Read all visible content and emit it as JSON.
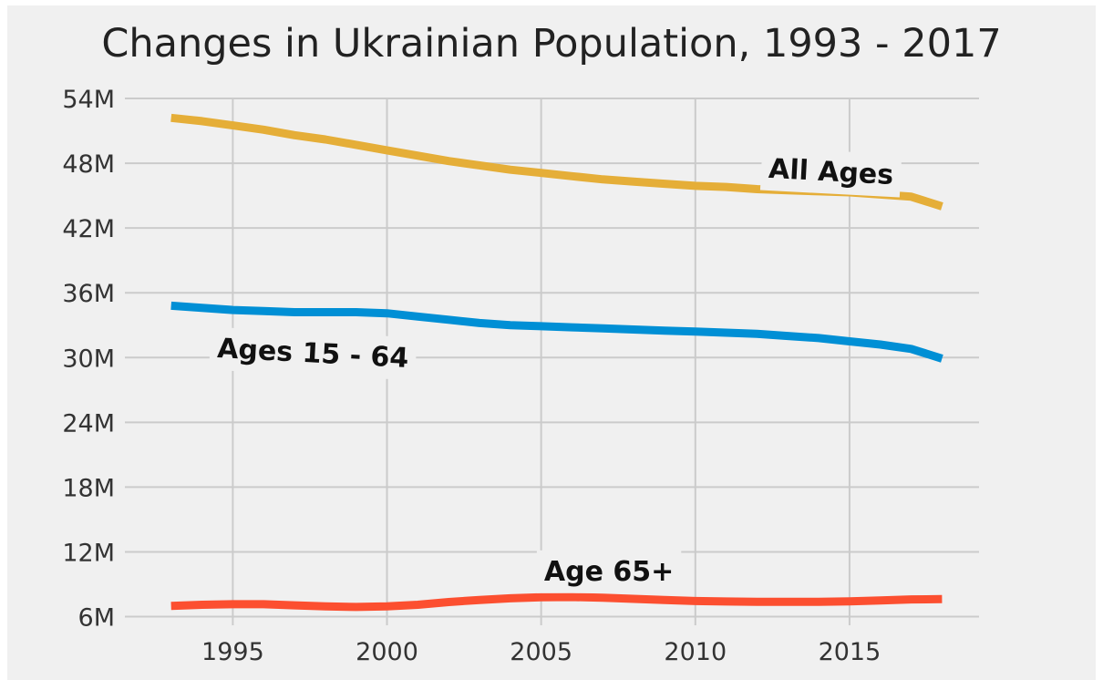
{
  "chart_data": {
    "type": "line",
    "title": "Changes in Ukrainian Population, 1993 - 2017",
    "xlabel": "",
    "ylabel": "",
    "xlim": [
      1991.5,
      2019.2
    ],
    "ylim": [
      5.2,
      54.0
    ],
    "x_ticks": [
      1995,
      2000,
      2005,
      2010,
      2015
    ],
    "x_tick_labels": [
      "1995",
      "2000",
      "2005",
      "2010",
      "2015"
    ],
    "y_ticks": [
      6,
      12,
      18,
      24,
      30,
      36,
      42,
      48,
      54
    ],
    "y_tick_labels": [
      "6M",
      "12M",
      "18M",
      "24M",
      "30M",
      "36M",
      "42M",
      "48M",
      "54M"
    ],
    "grid": true,
    "x": [
      1993,
      1994,
      1995,
      1996,
      1997,
      1998,
      1999,
      2000,
      2001,
      2002,
      2003,
      2004,
      2005,
      2006,
      2007,
      2008,
      2009,
      2010,
      2011,
      2012,
      2013,
      2014,
      2015,
      2016,
      2017,
      2018
    ],
    "series": [
      {
        "key": "all",
        "color": "#e5ae38",
        "values": [
          52.2,
          51.9,
          51.5,
          51.1,
          50.6,
          50.2,
          49.7,
          49.2,
          48.7,
          48.2,
          47.8,
          47.4,
          47.1,
          46.8,
          46.5,
          46.3,
          46.1,
          45.9,
          45.8,
          45.6,
          45.5,
          45.4,
          45.3,
          45.1,
          44.9,
          44.0
        ]
      },
      {
        "key": "15-64",
        "color": "#008fd5",
        "values": [
          34.8,
          34.6,
          34.4,
          34.3,
          34.2,
          34.2,
          34.2,
          34.1,
          33.8,
          33.5,
          33.2,
          33.0,
          32.9,
          32.8,
          32.7,
          32.6,
          32.5,
          32.4,
          32.3,
          32.2,
          32.0,
          31.8,
          31.5,
          31.2,
          30.8,
          29.9
        ]
      },
      {
        "key": "65+",
        "color": "#fc4f30",
        "values": [
          7.0,
          7.1,
          7.15,
          7.15,
          7.05,
          6.95,
          6.9,
          6.95,
          7.1,
          7.35,
          7.55,
          7.7,
          7.8,
          7.82,
          7.75,
          7.65,
          7.55,
          7.45,
          7.4,
          7.38,
          7.38,
          7.38,
          7.42,
          7.5,
          7.6,
          7.62
        ]
      }
    ],
    "annotations": [
      {
        "key": "all",
        "text": "All Ages",
        "x": 2014.4,
        "y": 47.2,
        "rotation": 3
      },
      {
        "key": "15-64",
        "text": "Ages 15 - 64",
        "x": 1997.6,
        "y": 30.4,
        "rotation": 3
      },
      {
        "key": "65+",
        "text": "Age 65+",
        "x": 2007.2,
        "y": 10.2,
        "rotation": 0
      }
    ]
  }
}
